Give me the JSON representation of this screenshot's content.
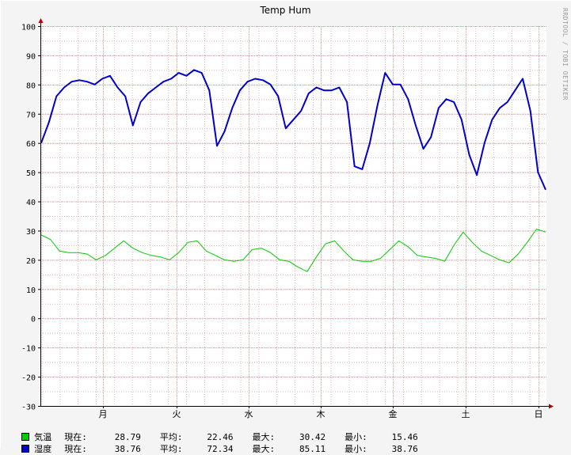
{
  "chart_data": {
    "type": "line",
    "title": "Temp Hum",
    "watermark": "RRDTOOL / TOBI OETIKER",
    "ylim": [
      -30,
      100
    ],
    "yticks": [
      100,
      90,
      80,
      70,
      60,
      50,
      40,
      30,
      20,
      10,
      0,
      -10,
      -20,
      -30
    ],
    "x_labels": [
      "月",
      "火",
      "水",
      "木",
      "金",
      "土",
      "日"
    ],
    "grid": true,
    "series": [
      {
        "name": "気温",
        "color": "#00cc00",
        "values": [
          28.5,
          27,
          23,
          22.5,
          22.5,
          22,
          20,
          21.5,
          24,
          26.5,
          24,
          22.5,
          21.5,
          21,
          20,
          22.5,
          26,
          26.5,
          23,
          21.5,
          20,
          19.5,
          20,
          23.5,
          24,
          22.5,
          20,
          19.5,
          17.5,
          16,
          21,
          25.5,
          26.5,
          23,
          20,
          19.5,
          19.5,
          20.5,
          23.5,
          26.5,
          24.5,
          21.5,
          21,
          20.5,
          19.5,
          25,
          29.5,
          26,
          23,
          21.5,
          20,
          19,
          22,
          26,
          30.5,
          29.5
        ]
      },
      {
        "name": "湿度",
        "color": "#0000cc",
        "values": [
          60,
          67,
          76,
          79,
          81,
          81.5,
          81,
          80,
          82,
          83,
          79,
          76,
          66,
          74,
          77,
          79,
          81,
          82,
          84,
          83,
          85,
          84,
          78,
          59,
          64,
          72,
          78,
          81,
          82,
          81.5,
          80,
          76,
          65,
          68,
          71,
          77,
          79,
          78,
          78,
          79,
          74,
          52,
          51,
          60,
          73,
          84,
          80,
          80,
          75,
          66,
          58,
          62,
          72,
          75,
          74,
          68,
          56,
          49,
          60,
          68,
          72,
          74,
          78,
          82,
          71,
          50,
          44
        ]
      }
    ],
    "legend": [
      {
        "name": "気温",
        "color": "#00cc00",
        "cur_label": "現在:",
        "cur": "28.79",
        "avg_label": "平均:",
        "avg": "22.46",
        "max_label": "最大:",
        "max": "30.42",
        "min_label": "最小:",
        "min": "15.46"
      },
      {
        "name": "湿度",
        "color": "#0000cc",
        "cur_label": "現在:",
        "cur": "38.76",
        "avg_label": "平均:",
        "avg": "72.34",
        "max_label": "最大:",
        "max": "85.11",
        "min_label": "最小:",
        "min": "38.76"
      }
    ]
  }
}
